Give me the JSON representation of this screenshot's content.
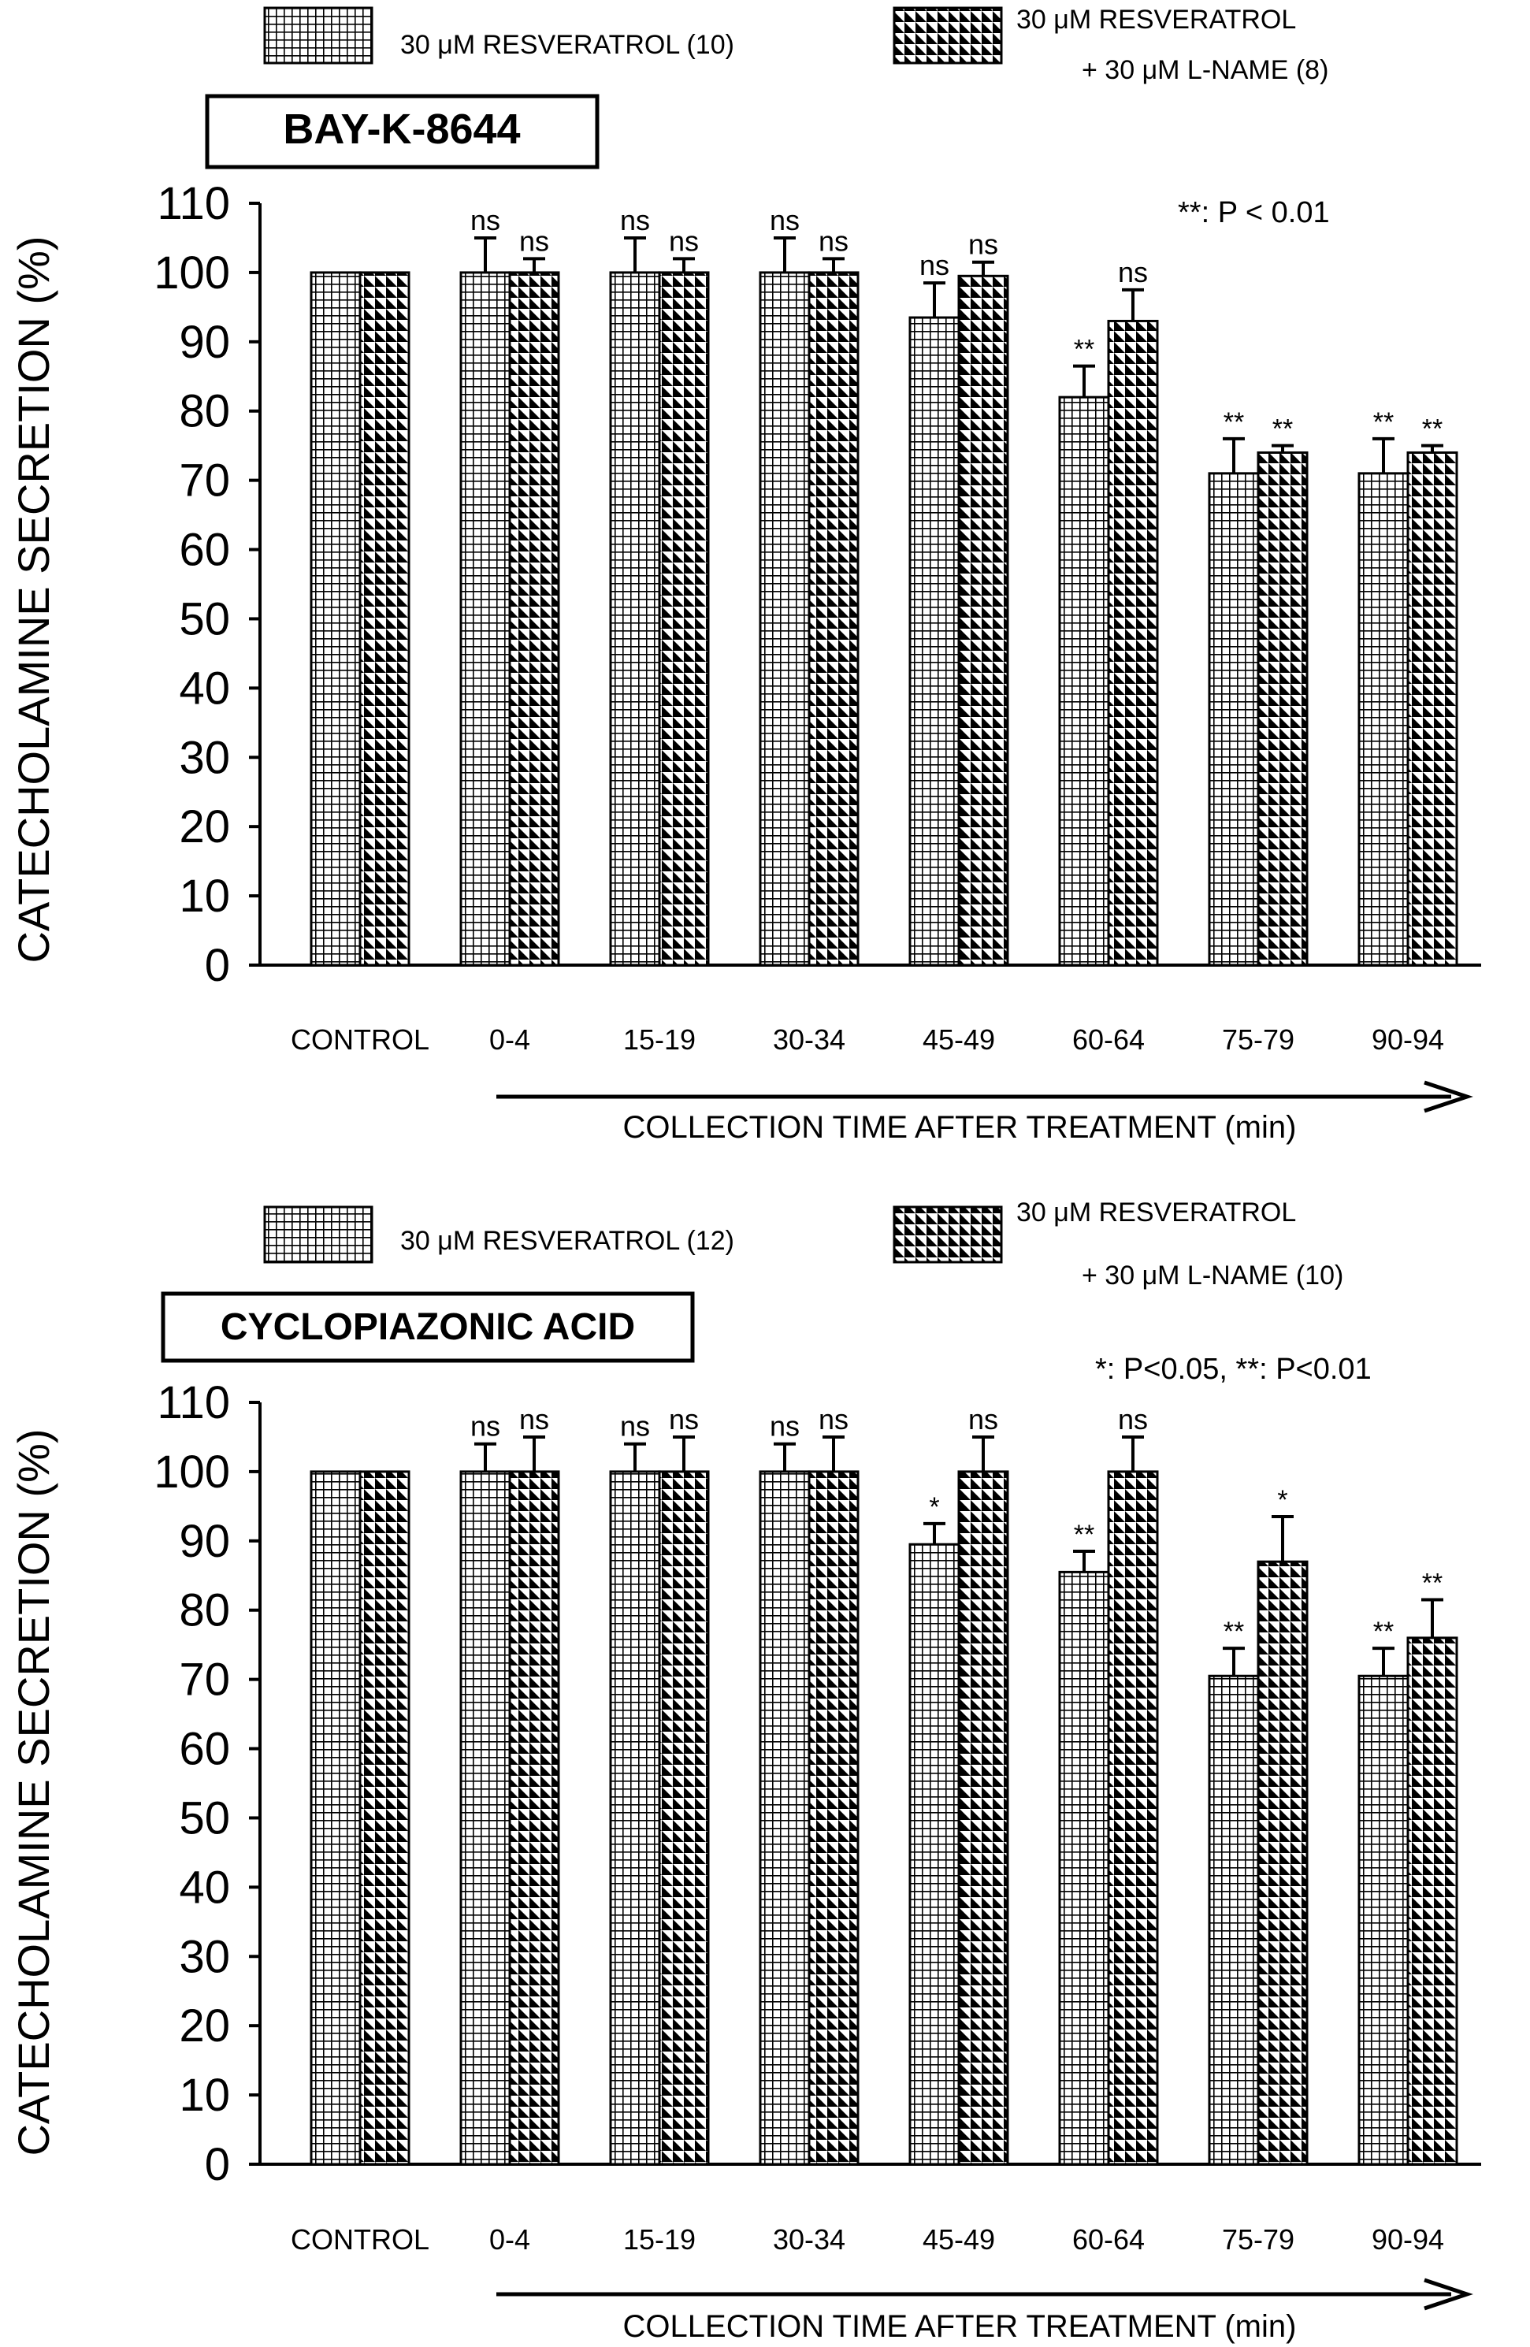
{
  "chart_data": [
    {
      "type": "bar",
      "title": "BAY-K-8644",
      "ylabel": "CATECHOLAMINE SECRETION (%)",
      "xlabel": "COLLECTION TIME AFTER TREATMENT (min)",
      "ylim": [
        0,
        110
      ],
      "yticks": [
        0,
        10,
        20,
        30,
        40,
        50,
        60,
        70,
        80,
        90,
        100,
        110
      ],
      "categories": [
        "CONTROL",
        "0-4",
        "15-19",
        "30-34",
        "45-49",
        "60-64",
        "75-79",
        "90-94"
      ],
      "legend_placement": "top",
      "significance_note": "**: P < 0.01",
      "series": [
        {
          "name": "30 μM RESVERATROL (10)",
          "pattern": "grid",
          "values": [
            100,
            100,
            100,
            100,
            93.5,
            82,
            71,
            71
          ],
          "errors": [
            0,
            5,
            5,
            5,
            5,
            4.5,
            5,
            5
          ],
          "labels": [
            "",
            "ns",
            "ns",
            "ns",
            "ns",
            "**",
            "**",
            "**"
          ]
        },
        {
          "name_lines": [
            "30 μM RESVERATROL",
            "+ 30 μM L-NAME (8)"
          ],
          "pattern": "triangles",
          "values": [
            100,
            100,
            100,
            100,
            99.5,
            93,
            74,
            74
          ],
          "errors": [
            0,
            2,
            2,
            2,
            2,
            4.5,
            1,
            1
          ],
          "labels": [
            "",
            "ns",
            "ns",
            "ns",
            "ns",
            "ns",
            "**",
            "**"
          ]
        }
      ]
    },
    {
      "type": "bar",
      "title": "CYCLOPIAZONIC ACID",
      "ylabel": "CATECHOLAMINE SECRETION (%)",
      "xlabel": "COLLECTION TIME AFTER TREATMENT (min)",
      "ylim": [
        0,
        110
      ],
      "yticks": [
        0,
        10,
        20,
        30,
        40,
        50,
        60,
        70,
        80,
        90,
        100,
        110
      ],
      "categories": [
        "CONTROL",
        "0-4",
        "15-19",
        "30-34",
        "45-49",
        "60-64",
        "75-79",
        "90-94"
      ],
      "legend_placement": "top",
      "significance_note": "*: P<0.05, **: P<0.01",
      "series": [
        {
          "name": "30 μM RESVERATROL (12)",
          "pattern": "grid",
          "values": [
            100,
            100,
            100,
            100,
            89.5,
            85.5,
            70.5,
            70.5
          ],
          "errors": [
            0,
            4,
            4,
            4,
            3,
            3,
            4,
            4
          ],
          "labels": [
            "",
            "ns",
            "ns",
            "ns",
            "*",
            "**",
            "**",
            "**"
          ]
        },
        {
          "name_lines": [
            "30 μM RESVERATROL",
            "+ 30 μM L-NAME (10)"
          ],
          "pattern": "triangles",
          "values": [
            100,
            100,
            100,
            100,
            100,
            100,
            87,
            76
          ],
          "errors": [
            0,
            5,
            5,
            5,
            5,
            5,
            6.5,
            5.5
          ],
          "labels": [
            "",
            "ns",
            "ns",
            "ns",
            "ns",
            "ns",
            "*",
            "**"
          ]
        }
      ]
    }
  ]
}
